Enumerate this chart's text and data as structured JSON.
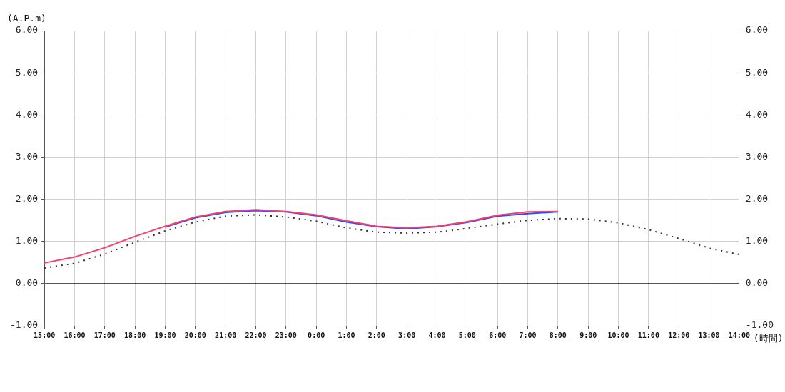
{
  "chart_data": {
    "type": "line",
    "ylabel": "(A.P.m)",
    "xlabel": "(時間)",
    "categories": [
      "15:00",
      "16:00",
      "17:00",
      "18:00",
      "19:00",
      "20:00",
      "21:00",
      "22:00",
      "23:00",
      "0:00",
      "1:00",
      "2:00",
      "3:00",
      "4:00",
      "5:00",
      "6:00",
      "7:00",
      "8:00",
      "9:00",
      "10:00",
      "11:00",
      "12:00",
      "13:00",
      "14:00"
    ],
    "series": [
      {
        "color": "#1a56ff",
        "line_style": "solid",
        "values": [
          null,
          null,
          null,
          null,
          1.34,
          1.56,
          1.69,
          1.73,
          1.7,
          1.61,
          1.46,
          1.35,
          1.3,
          1.35,
          1.45,
          1.6,
          1.66,
          1.7,
          null,
          null,
          null,
          null,
          null,
          null
        ]
      },
      {
        "color": "#ff3a6e",
        "line_style": "solid",
        "values": [
          0.49,
          0.63,
          0.85,
          1.12,
          1.36,
          1.58,
          1.71,
          1.75,
          1.71,
          1.63,
          1.49,
          1.36,
          1.32,
          1.36,
          1.47,
          1.62,
          1.7,
          1.71,
          null,
          null,
          null,
          null,
          null,
          null
        ]
      },
      {
        "color": "#333333",
        "line_style": "dotted",
        "values": [
          0.37,
          0.48,
          0.7,
          0.98,
          1.25,
          1.46,
          1.6,
          1.63,
          1.58,
          1.48,
          1.32,
          1.22,
          1.2,
          1.22,
          1.31,
          1.41,
          1.5,
          1.54,
          1.53,
          1.44,
          1.28,
          1.07,
          0.84,
          0.69
        ]
      }
    ],
    "ylim": [
      -1,
      6
    ],
    "yticks": [
      {
        "value": -1,
        "label": "-1.00"
      },
      {
        "value": 0,
        "label": "0.00"
      },
      {
        "value": 1,
        "label": "1.00"
      },
      {
        "value": 2,
        "label": "2.00"
      },
      {
        "value": 3,
        "label": "3.00"
      },
      {
        "value": 4,
        "label": "4.00"
      },
      {
        "value": 5,
        "label": "5.00"
      },
      {
        "value": 6,
        "label": "6.00"
      }
    ],
    "y2lim": [
      -1,
      6
    ],
    "y2ticks": [
      {
        "value": -1,
        "label": "-1.00"
      },
      {
        "value": 0,
        "label": "0.00"
      },
      {
        "value": 1,
        "label": "1.00"
      },
      {
        "value": 2,
        "label": "2.00"
      },
      {
        "value": 3,
        "label": "3.00"
      },
      {
        "value": 4,
        "label": "4.00"
      },
      {
        "value": 5,
        "label": "5.00"
      },
      {
        "value": 6,
        "label": "6.00"
      }
    ],
    "grid": true,
    "legend": false,
    "marker": "none"
  }
}
